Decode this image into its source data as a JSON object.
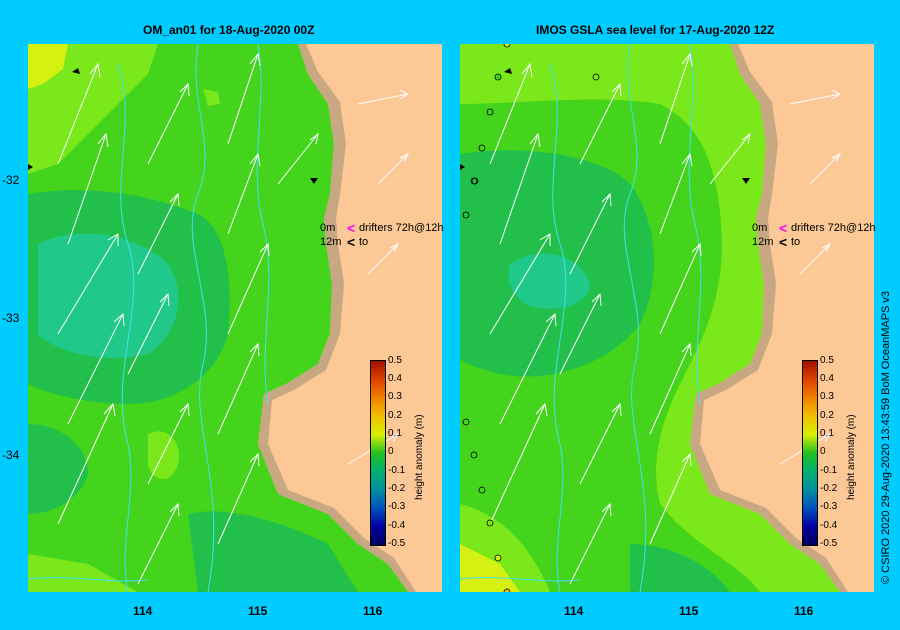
{
  "left_panel": {
    "title": "OM_an01  for 18-Aug-2020 00Z",
    "legend_line1_depth": "0m",
    "legend_line1_text": "drifters 72h@12h",
    "legend_line2_depth": "12m",
    "legend_line2_text": "to"
  },
  "right_panel": {
    "title": "IMOS GSLA sea level  for 17-Aug-2020 12Z",
    "legend_line1_depth": "0m",
    "legend_line1_text": "drifters 72h@12h",
    "legend_line2_depth": "12m",
    "legend_line2_text": "to"
  },
  "y_ticks": [
    "-32",
    "-33",
    "-34"
  ],
  "x_ticks": [
    "114",
    "115",
    "116"
  ],
  "colorbar": {
    "label": "height anomaly (m)",
    "ticks": [
      "0.5",
      "0.4",
      "0.3",
      "0.2",
      "0.1",
      "0",
      "-0.1",
      "-0.2",
      "-0.3",
      "-0.4",
      "-0.5"
    ]
  },
  "credit": "© CSIRO 2020   29-Aug-2020 13:43:59 BoM OceanMAPS v3",
  "colors": {
    "frame": "#00ccff",
    "land": "#fcc895",
    "shelf": "#c8a882",
    "current_lines": "#40e0f0",
    "arrows": "#ffffff",
    "drifter_marker": "#ff00ff"
  }
}
